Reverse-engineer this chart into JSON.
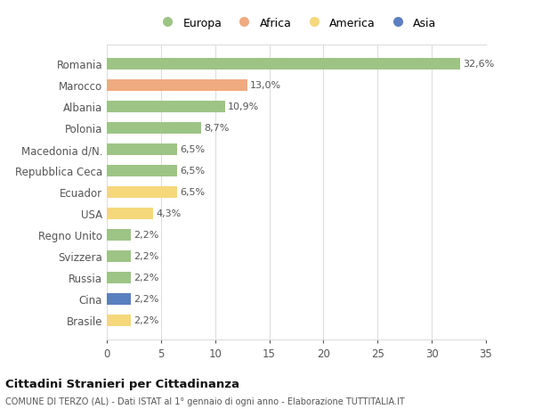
{
  "categories": [
    "Brasile",
    "Cina",
    "Russia",
    "Svizzera",
    "Regno Unito",
    "USA",
    "Ecuador",
    "Repubblica Ceca",
    "Macedonia d/N.",
    "Polonia",
    "Albania",
    "Marocco",
    "Romania"
  ],
  "values": [
    2.2,
    2.2,
    2.2,
    2.2,
    2.2,
    4.3,
    6.5,
    6.5,
    6.5,
    8.7,
    10.9,
    13.0,
    32.6
  ],
  "colors": [
    "#f5d87a",
    "#5b7fc0",
    "#9dc485",
    "#9dc485",
    "#9dc485",
    "#f5d87a",
    "#f5d87a",
    "#9dc485",
    "#9dc485",
    "#9dc485",
    "#9dc485",
    "#f0aa80",
    "#9dc485"
  ],
  "labels": [
    "2,2%",
    "2,2%",
    "2,2%",
    "2,2%",
    "2,2%",
    "4,3%",
    "6,5%",
    "6,5%",
    "6,5%",
    "8,7%",
    "10,9%",
    "13,0%",
    "32,6%"
  ],
  "legend": [
    {
      "label": "Europa",
      "color": "#9dc485"
    },
    {
      "label": "Africa",
      "color": "#f0aa80"
    },
    {
      "label": "America",
      "color": "#f5d87a"
    },
    {
      "label": "Asia",
      "color": "#5b7fc0"
    }
  ],
  "xlim": [
    0,
    35
  ],
  "xticks": [
    0,
    5,
    10,
    15,
    20,
    25,
    30,
    35
  ],
  "title1": "Cittadini Stranieri per Cittadinanza",
  "title2": "COMUNE DI TERZO (AL) - Dati ISTAT al 1° gennaio di ogni anno - Elaborazione TUTTITALIA.IT",
  "background_color": "#ffffff",
  "grid_color": "#dddddd"
}
